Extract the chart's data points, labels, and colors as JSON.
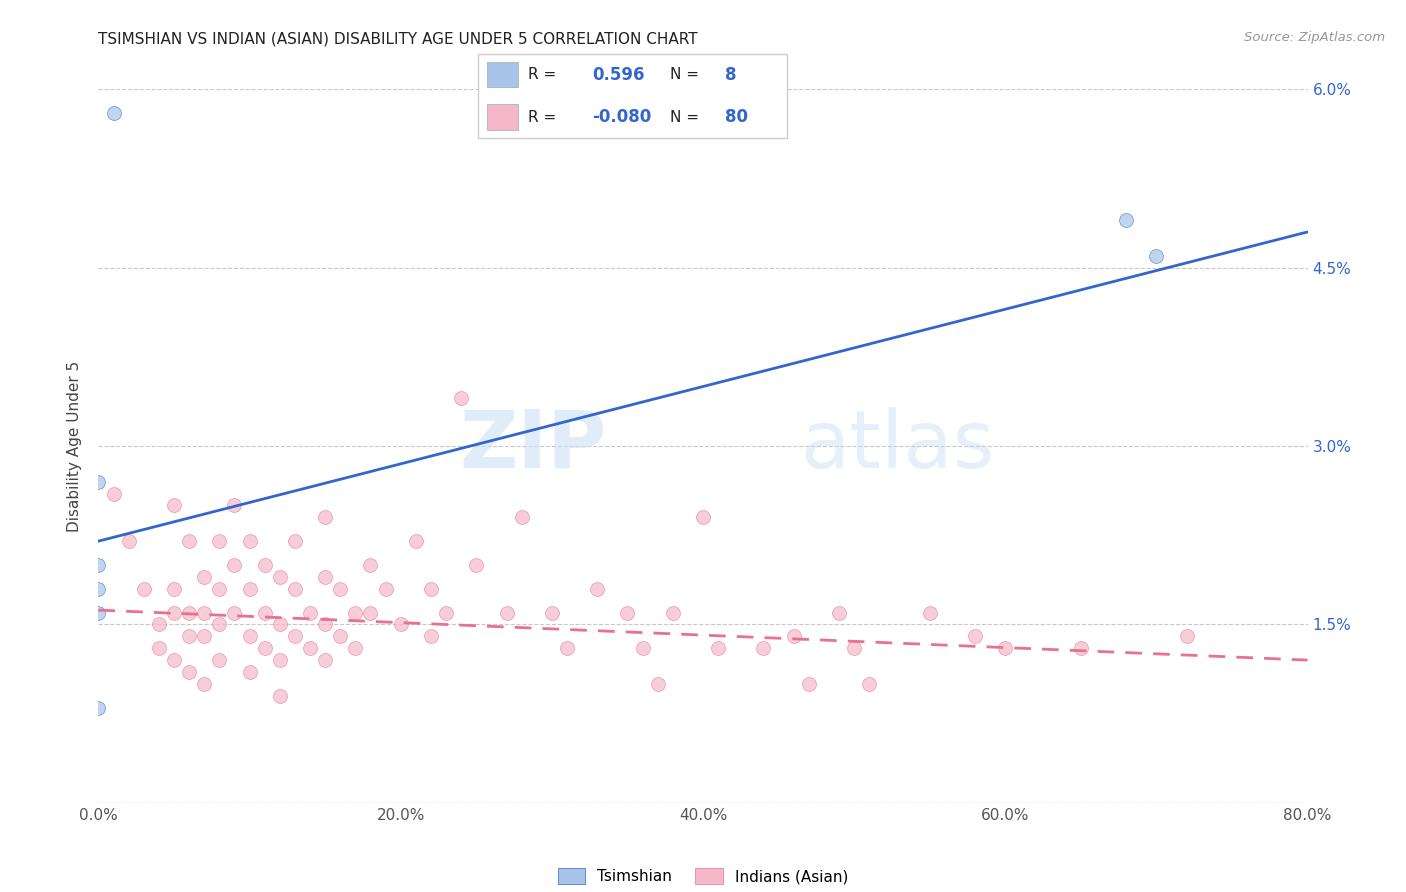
{
  "title": "TSIMSHIAN VS INDIAN (ASIAN) DISABILITY AGE UNDER 5 CORRELATION CHART",
  "source": "Source: ZipAtlas.com",
  "ylabel": "Disability Age Under 5",
  "xlim": [
    0.0,
    0.8
  ],
  "ylim": [
    0.0,
    0.06
  ],
  "xticks": [
    0.0,
    0.2,
    0.4,
    0.6,
    0.8
  ],
  "xticklabels": [
    "0.0%",
    "20.0%",
    "40.0%",
    "60.0%",
    "80.0%"
  ],
  "yticks": [
    0.0,
    0.015,
    0.03,
    0.045,
    0.06
  ],
  "yticklabels": [
    "",
    "1.5%",
    "3.0%",
    "4.5%",
    "6.0%"
  ],
  "tsimshian_color": "#a8c4e8",
  "indian_color": "#f5b8c8",
  "tsimshian_line_color": "#3366cc",
  "indian_line_color": "#e87090",
  "right_axis_color": "#3366cc",
  "legend_r_tsimshian": "0.596",
  "legend_n_tsimshian": "8",
  "legend_r_indian": "-0.080",
  "legend_n_indian": "80",
  "watermark_zip": "ZIP",
  "watermark_atlas": "atlas",
  "tsimshian_points": [
    [
      0.01,
      0.058
    ],
    [
      0.0,
      0.027
    ],
    [
      0.0,
      0.02
    ],
    [
      0.0,
      0.018
    ],
    [
      0.0,
      0.016
    ],
    [
      0.0,
      0.008
    ],
    [
      0.68,
      0.049
    ],
    [
      0.7,
      0.046
    ]
  ],
  "indian_points": [
    [
      0.01,
      0.026
    ],
    [
      0.02,
      0.022
    ],
    [
      0.03,
      0.018
    ],
    [
      0.04,
      0.015
    ],
    [
      0.04,
      0.013
    ],
    [
      0.05,
      0.025
    ],
    [
      0.05,
      0.018
    ],
    [
      0.05,
      0.016
    ],
    [
      0.05,
      0.012
    ],
    [
      0.06,
      0.022
    ],
    [
      0.06,
      0.016
    ],
    [
      0.06,
      0.014
    ],
    [
      0.06,
      0.011
    ],
    [
      0.07,
      0.019
    ],
    [
      0.07,
      0.016
    ],
    [
      0.07,
      0.014
    ],
    [
      0.07,
      0.01
    ],
    [
      0.08,
      0.022
    ],
    [
      0.08,
      0.018
    ],
    [
      0.08,
      0.015
    ],
    [
      0.08,
      0.012
    ],
    [
      0.09,
      0.025
    ],
    [
      0.09,
      0.02
    ],
    [
      0.09,
      0.016
    ],
    [
      0.1,
      0.022
    ],
    [
      0.1,
      0.018
    ],
    [
      0.1,
      0.014
    ],
    [
      0.1,
      0.011
    ],
    [
      0.11,
      0.02
    ],
    [
      0.11,
      0.016
    ],
    [
      0.11,
      0.013
    ],
    [
      0.12,
      0.019
    ],
    [
      0.12,
      0.015
    ],
    [
      0.12,
      0.012
    ],
    [
      0.12,
      0.009
    ],
    [
      0.13,
      0.022
    ],
    [
      0.13,
      0.018
    ],
    [
      0.13,
      0.014
    ],
    [
      0.14,
      0.016
    ],
    [
      0.14,
      0.013
    ],
    [
      0.15,
      0.024
    ],
    [
      0.15,
      0.019
    ],
    [
      0.15,
      0.015
    ],
    [
      0.15,
      0.012
    ],
    [
      0.16,
      0.018
    ],
    [
      0.16,
      0.014
    ],
    [
      0.17,
      0.016
    ],
    [
      0.17,
      0.013
    ],
    [
      0.18,
      0.02
    ],
    [
      0.18,
      0.016
    ],
    [
      0.19,
      0.018
    ],
    [
      0.2,
      0.015
    ],
    [
      0.21,
      0.022
    ],
    [
      0.22,
      0.018
    ],
    [
      0.22,
      0.014
    ],
    [
      0.23,
      0.016
    ],
    [
      0.24,
      0.034
    ],
    [
      0.25,
      0.02
    ],
    [
      0.27,
      0.016
    ],
    [
      0.28,
      0.024
    ],
    [
      0.3,
      0.016
    ],
    [
      0.31,
      0.013
    ],
    [
      0.33,
      0.018
    ],
    [
      0.35,
      0.016
    ],
    [
      0.36,
      0.013
    ],
    [
      0.37,
      0.01
    ],
    [
      0.38,
      0.016
    ],
    [
      0.4,
      0.024
    ],
    [
      0.41,
      0.013
    ],
    [
      0.44,
      0.013
    ],
    [
      0.46,
      0.014
    ],
    [
      0.47,
      0.01
    ],
    [
      0.49,
      0.016
    ],
    [
      0.5,
      0.013
    ],
    [
      0.51,
      0.01
    ],
    [
      0.55,
      0.016
    ],
    [
      0.58,
      0.014
    ],
    [
      0.6,
      0.013
    ],
    [
      0.65,
      0.013
    ],
    [
      0.72,
      0.014
    ]
  ],
  "tsimshian_trend_x": [
    0.0,
    0.8
  ],
  "tsimshian_trend_y": [
    0.022,
    0.048
  ],
  "indian_trend_x": [
    0.0,
    0.8
  ],
  "indian_trend_y": [
    0.0162,
    0.012
  ]
}
